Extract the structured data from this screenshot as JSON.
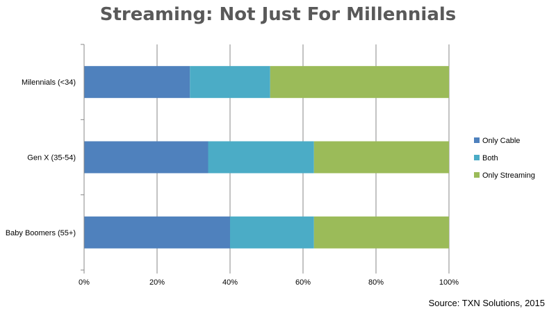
{
  "chart_data": {
    "type": "bar",
    "orientation": "horizontal",
    "stacked": "percent",
    "title": "Streaming: Not Just For Millennials",
    "categories": [
      "Milennials (<34)",
      "Gen X (35-54)",
      "Baby Boomers (55+)"
    ],
    "series": [
      {
        "name": "Only Cable",
        "color": "#4f81bd",
        "values": [
          29,
          34,
          40
        ]
      },
      {
        "name": "Both",
        "color": "#4bacc6",
        "values": [
          22,
          29,
          23
        ]
      },
      {
        "name": "Only Streaming",
        "color": "#9bbb59",
        "values": [
          49,
          37,
          37
        ]
      }
    ],
    "x_ticks": [
      "0%",
      "20%",
      "40%",
      "60%",
      "80%",
      "100%"
    ],
    "xlim": [
      0,
      100
    ],
    "grid": "vertical",
    "legend_position": "right",
    "source": "Source: TXN Solutions, 2015"
  }
}
